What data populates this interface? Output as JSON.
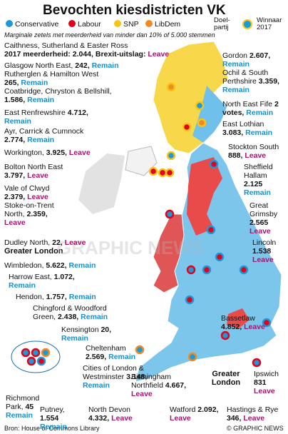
{
  "header": {
    "title": "Bevochten kiesdistricten VK",
    "subtitle": "Marginale zetels met meerderheid van minder dan 10% of 5.000 stemmen"
  },
  "legend": {
    "parties": [
      "Conservative",
      "Labour",
      "SNP",
      "LibDem"
    ],
    "target": "Doel-partij",
    "winner": "Winnaar 2017"
  },
  "key": {
    "constituency": "Caithness, Sutherland & Easter Ross",
    "majority_label": "2017 meerderheid:",
    "majority": "2.044,",
    "brexit_label": "Brexit-uitslag:",
    "result": "Leave"
  },
  "constituencies": [
    {
      "name": "Glasgow North East,",
      "majority": "242,",
      "result": "Remain"
    },
    {
      "name": "Rutherglen & Hamilton West",
      "majority": "265,",
      "result": "Remain"
    },
    {
      "name": "Coatbridge, Chryston & Bellshill,",
      "majority": "1.586,",
      "result": "Remain"
    },
    {
      "name": "East Renfrewshire",
      "majority": "4.712,",
      "result": "Remain"
    },
    {
      "name": "Ayr, Carrick & Cumnock",
      "majority": "2.774,",
      "result": "Remain"
    },
    {
      "name": "Workington,",
      "majority": "3.925,",
      "result": "Leave"
    },
    {
      "name": "Bolton North East",
      "majority": "3.797,",
      "result": "Leave"
    },
    {
      "name": "Vale of Clwyd",
      "majority": "2.379,",
      "result": "Leave"
    },
    {
      "name": "Stoke-on-Trent North,",
      "majority": "2.359,",
      "result": "Leave"
    },
    {
      "name": "Dudley North,",
      "majority": "22,",
      "result": "Leave"
    },
    {
      "name": "Wimbledon,",
      "majority": "5.622,",
      "result": "Remain"
    },
    {
      "name": "Harrow East,",
      "majority": "1.072,",
      "result": "Remain"
    },
    {
      "name": "Hendon,",
      "majority": "1.757,",
      "result": "Remain"
    },
    {
      "name": "Chingford & Woodford Green,",
      "majority": "2.438,",
      "result": "Remain"
    },
    {
      "name": "Kensington",
      "majority": "20,",
      "result": "Remain"
    },
    {
      "name": "Cheltenham",
      "majority": "2.569,",
      "result": "Remain"
    },
    {
      "name": "Cities of London & Westminster",
      "majority": "3.148,",
      "result": "Remain"
    },
    {
      "name": "Richmond Park,",
      "majority": "45",
      "result": "Remain"
    },
    {
      "name": "Putney,",
      "majority": "1.554",
      "result": "Remain"
    },
    {
      "name": "North Devon",
      "majority": "4.332,",
      "result": "Leave"
    },
    {
      "name": "Birmingham Northfield",
      "majority": "4.667,",
      "result": "Leave"
    },
    {
      "name": "Watford",
      "majority": "2.092,",
      "result": "Leave"
    },
    {
      "name": "Hastings & Rye",
      "majority": "346,",
      "result": "Leave"
    },
    {
      "name": "Ipswich",
      "majority": "831",
      "result": "Leave"
    },
    {
      "name": "Gordon",
      "majority": "2.607,",
      "result": "Remain"
    },
    {
      "name": "Ochil & South Perthshire",
      "majority": "3.359,",
      "result": "Remain"
    },
    {
      "name": "North East Fife",
      "majority": "2 votes,",
      "result": "Remain"
    },
    {
      "name": "East Lothian",
      "majority": "3.083,",
      "result": "Remain"
    },
    {
      "name": "Stockton South",
      "majority": "888,",
      "result": "Leave"
    },
    {
      "name": "Sheffield Hallam",
      "majority": "2.125",
      "result": "Remain"
    },
    {
      "name": "Great Grimsby",
      "majority": "2.565",
      "result": "Leave"
    },
    {
      "name": "Lincoln",
      "majority": "1.538",
      "result": "Leave"
    },
    {
      "name": "Bassetlaw",
      "majority": "4.852,",
      "result": "Leave"
    }
  ],
  "labels": {
    "greater_london_list": "Greater London",
    "greater_london_map": "Greater London",
    "watermark": "GRAPHIC NEWS"
  },
  "footer": {
    "source": "Bron: House of Commons Library",
    "credit": "© GRAPHIC NEWS"
  }
}
